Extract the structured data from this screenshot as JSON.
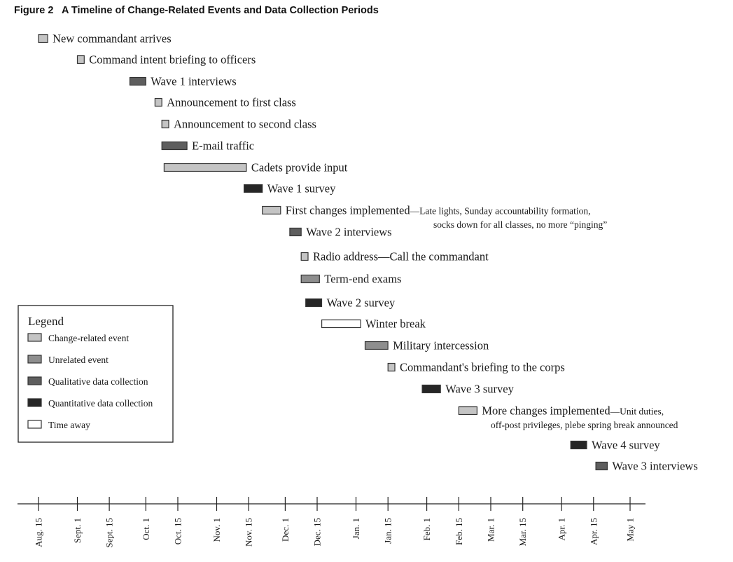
{
  "figure_title": "Figure 2   A Timeline of Change-Related Events and Data Collection Periods",
  "colors": {
    "change": "#c4c4c4",
    "unrelated": "#8e8e8e",
    "qualitative": "#5e5e5e",
    "quantitative": "#262626",
    "away": "#ffffff",
    "stroke": "#333333"
  },
  "chart_data": {
    "type": "gantt timeline",
    "x_axis": {
      "start": "Aug. 15",
      "end": "May 1",
      "ticks": [
        "Aug. 15",
        "Sept. 1",
        "Sept. 15",
        "Oct. 1",
        "Oct. 15",
        "Nov. 1",
        "Nov. 15",
        "Dec. 1",
        "Dec. 15",
        "Jan. 1",
        "Jan. 15",
        "Feb. 1",
        "Feb. 15",
        "Mar. 1",
        "Mar. 15",
        "Apr. 1",
        "Apr. 15",
        "May 1"
      ]
    },
    "events": [
      {
        "label": "New commandant arrives",
        "category": "change",
        "start": "Aug. 15",
        "end": "Aug. 19"
      },
      {
        "label": "Command intent briefing to officers",
        "category": "change",
        "start": "Sept. 1",
        "end": "Sept. 4"
      },
      {
        "label": "Wave 1 interviews",
        "category": "qualitative",
        "start": "Sept. 24",
        "end": "Oct. 1"
      },
      {
        "label": "Announcement to first class",
        "category": "change",
        "start": "Oct. 5",
        "end": "Oct. 8"
      },
      {
        "label": "Announcement to second class",
        "category": "change",
        "start": "Oct. 8",
        "end": "Oct. 11"
      },
      {
        "label": "E-mail traffic",
        "category": "qualitative",
        "start": "Oct. 8",
        "end": "Oct. 19"
      },
      {
        "label": "Cadets provide input",
        "category": "change",
        "start": "Oct. 9",
        "end": "Nov. 14"
      },
      {
        "label": "Wave 1 survey",
        "category": "quantitative",
        "start": "Nov. 13",
        "end": "Nov. 21"
      },
      {
        "label": "First changes implemented",
        "note": "—Late lights, Sunday accountability formation,",
        "note2": "socks down for all classes, no more “pinging”",
        "category": "change",
        "start": "Nov. 21",
        "end": "Nov. 29"
      },
      {
        "label": "Wave 2 interviews",
        "category": "qualitative",
        "start": "Dec. 3",
        "end": "Dec. 8"
      },
      {
        "label": "Radio address—Call the commandant",
        "category": "change",
        "start": "Dec. 8",
        "end": "Dec. 11"
      },
      {
        "label": "Term-end exams",
        "category": "unrelated",
        "start": "Dec. 8",
        "end": "Dec. 16"
      },
      {
        "label": "Wave 2 survey",
        "category": "quantitative",
        "start": "Dec. 10",
        "end": "Dec. 17"
      },
      {
        "label": "Winter break",
        "category": "away",
        "start": "Dec. 17",
        "end": "Jan. 3"
      },
      {
        "label": "Military intercession",
        "category": "unrelated",
        "start": "Jan. 5",
        "end": "Jan. 15"
      },
      {
        "label": "Commandant's briefing to the corps",
        "category": "change",
        "start": "Jan. 15",
        "end": "Jan. 18"
      },
      {
        "label": "Wave 3 survey",
        "category": "quantitative",
        "start": "Jan. 30",
        "end": "Feb. 7"
      },
      {
        "label": "More changes implemented",
        "note": "—Unit duties,",
        "note2": "off-post privileges, plebe spring break announced",
        "category": "change",
        "start": "Feb. 15",
        "end": "Feb. 23"
      },
      {
        "label": "Wave 4 survey",
        "category": "quantitative",
        "start": "Apr. 5",
        "end": "Apr. 12"
      },
      {
        "label": "Wave 3 interviews",
        "category": "qualitative",
        "start": "Apr. 16",
        "end": "Apr. 21"
      }
    ],
    "legend": {
      "title": "Legend",
      "position": "left",
      "items": [
        {
          "label": "Change-related event",
          "category": "change"
        },
        {
          "label": "Unrelated event",
          "category": "unrelated"
        },
        {
          "label": "Qualitative data collection",
          "category": "qualitative"
        },
        {
          "label": "Quantitative data collection",
          "category": "quantitative"
        },
        {
          "label": "Time away",
          "category": "away"
        }
      ]
    }
  }
}
